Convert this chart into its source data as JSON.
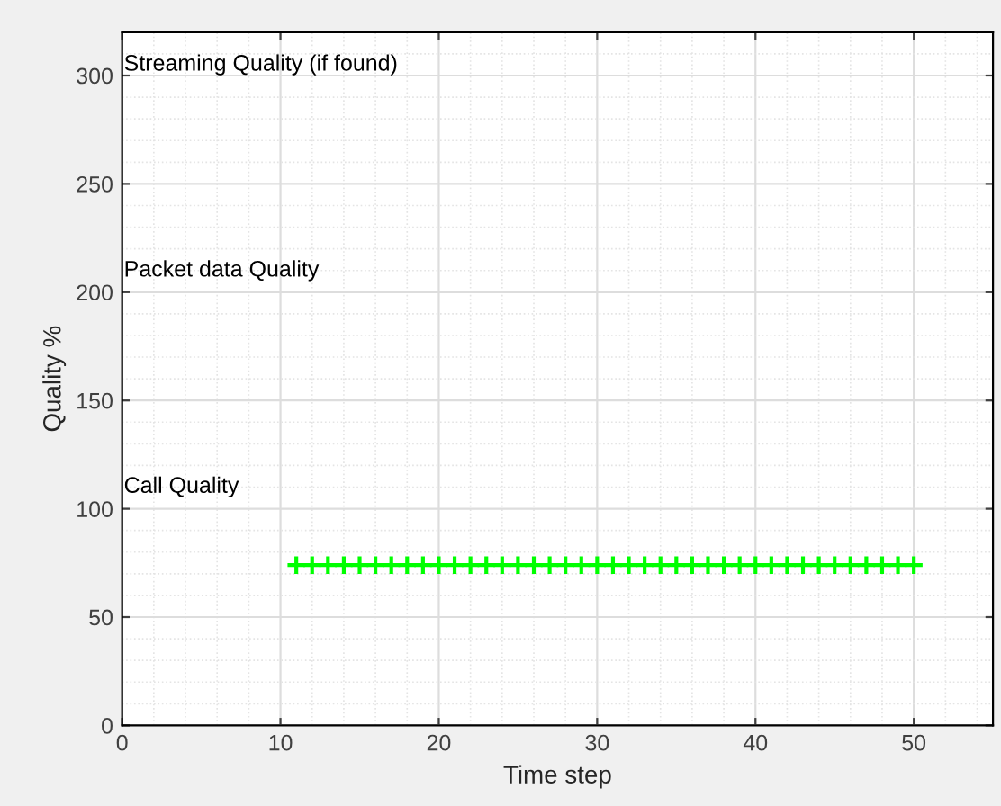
{
  "chart_data": {
    "type": "scatter",
    "xlabel": "Time step",
    "ylabel": "Quality %",
    "x": [
      11,
      12,
      13,
      14,
      15,
      16,
      17,
      18,
      19,
      20,
      21,
      22,
      23,
      24,
      25,
      26,
      27,
      28,
      29,
      30,
      31,
      32,
      33,
      34,
      35,
      36,
      37,
      38,
      39,
      40,
      41,
      42,
      43,
      44,
      45,
      46,
      47,
      48,
      49,
      50
    ],
    "series": [
      {
        "color": "#00ff00",
        "values": [
          74,
          74,
          74,
          74,
          74,
          74,
          74,
          74,
          74,
          74,
          74,
          74,
          74,
          74,
          74,
          74,
          74,
          74,
          74,
          74,
          74,
          74,
          74,
          74,
          74,
          74,
          74,
          74,
          74,
          74,
          74,
          74,
          74,
          74,
          74,
          74,
          74,
          74,
          74,
          74
        ]
      }
    ],
    "marker": "cross",
    "xlim": [
      0,
      55
    ],
    "xticks": [
      0,
      10,
      20,
      30,
      40,
      50
    ],
    "ylim": [
      0,
      320
    ],
    "yticks": [
      0,
      50,
      100,
      150,
      200,
      250,
      300
    ],
    "grid": true,
    "annotations": [
      "Streaming Quality (if found)",
      "Packet data Quality",
      "Call Quality"
    ]
  }
}
